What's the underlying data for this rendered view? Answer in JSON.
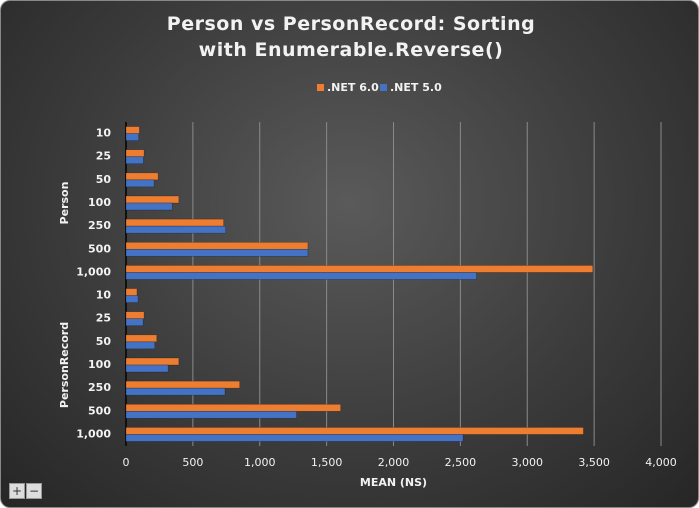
{
  "chart_data": {
    "type": "bar",
    "orientation": "horizontal",
    "title": "Person vs PersonRecord: Sorting with Enumerable.Reverse()",
    "xlabel": "MEAN (NS)",
    "groups": [
      {
        "name": "Person",
        "categories": [
          "10",
          "25",
          "50",
          "100",
          "250",
          "500",
          "1,000"
        ]
      },
      {
        "name": "PersonRecord",
        "categories": [
          "10",
          "25",
          "50",
          "100",
          "250",
          "500",
          "1,000"
        ]
      }
    ],
    "series": [
      {
        "name": ".NET 6.0",
        "color": "#ed7d31",
        "values": [
          100,
          135,
          240,
          395,
          730,
          1360,
          3490,
          82,
          135,
          230,
          395,
          850,
          1605,
          3420
        ]
      },
      {
        "name": ".NET 5.0",
        "color": "#4472c4",
        "values": [
          95,
          130,
          210,
          345,
          745,
          1360,
          2620,
          90,
          128,
          215,
          315,
          740,
          1275,
          2520
        ]
      }
    ],
    "xlim": [
      0,
      4000
    ],
    "xticks": [
      0,
      500,
      {
        "value": 1000,
        "label": "1,000"
      },
      {
        "value": 1500,
        "label": "1,500"
      },
      {
        "value": 2000,
        "label": "2,000"
      },
      {
        "value": 2500,
        "label": "2,500"
      },
      {
        "value": 3000,
        "label": "3,000"
      },
      {
        "value": 3500,
        "label": "3,500"
      },
      {
        "value": 4000,
        "label": "4,000"
      }
    ],
    "grid": true,
    "legend": "top"
  },
  "controls": [
    "+",
    "−"
  ]
}
